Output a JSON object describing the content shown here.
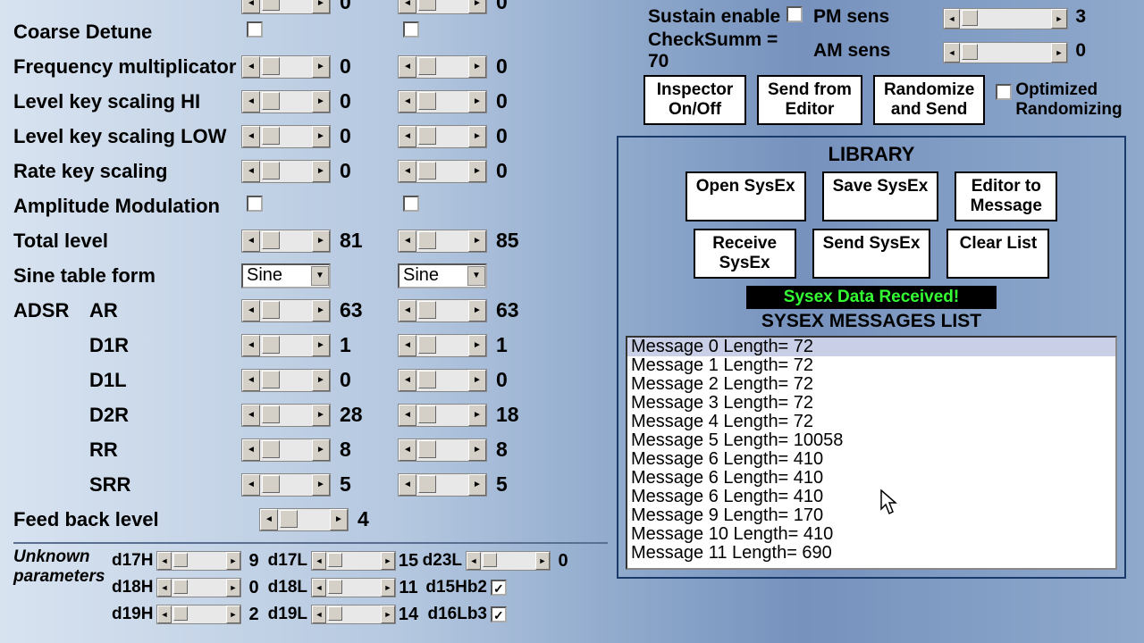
{
  "params": [
    {
      "label": "Coarse Detune",
      "type": "checkbox",
      "c1": false,
      "c2": false
    },
    {
      "label": "Frequency multiplicator",
      "type": "spinner",
      "v1": 0,
      "v2": 0
    },
    {
      "label": "Level key scaling HI",
      "type": "spinner",
      "v1": 0,
      "v2": 0
    },
    {
      "label": "Level key scaling LOW",
      "type": "spinner",
      "v1": 0,
      "v2": 0
    },
    {
      "label": "Rate key scaling",
      "type": "spinner",
      "v1": 0,
      "v2": 0
    },
    {
      "label": "Amplitude Modulation",
      "type": "checkbox",
      "c1": false,
      "c2": false
    },
    {
      "label": "Total level",
      "type": "spinner",
      "v1": 81,
      "v2": 85
    },
    {
      "label": "Sine table form",
      "type": "dropdown",
      "d1": "Sine",
      "d2": "Sine"
    }
  ],
  "adsr_header": "ADSR",
  "adsr": [
    {
      "label": "AR",
      "v1": 63,
      "v2": 63
    },
    {
      "label": "D1R",
      "v1": 1,
      "v2": 1
    },
    {
      "label": "D1L",
      "v1": 0,
      "v2": 0
    },
    {
      "label": "D2R",
      "v1": 28,
      "v2": 18
    },
    {
      "label": "RR",
      "v1": 8,
      "v2": 8
    },
    {
      "label": "SRR",
      "v1": 5,
      "v2": 5
    }
  ],
  "feedback": {
    "label": "Feed back level",
    "v": 4
  },
  "unknown": {
    "title1": "Unknown",
    "title2": "parameters",
    "rows": [
      {
        "n1": "d17H",
        "v1": 9,
        "n2": "d17L",
        "v2": 15,
        "n3": "d23L",
        "v3": 0,
        "cb": null
      },
      {
        "n1": "d18H",
        "v1": 0,
        "n2": "d18L",
        "v2": 11,
        "n3": "d15Hb2",
        "cb": true
      },
      {
        "n1": "d19H",
        "v1": 2,
        "n2": "d19L",
        "v2": 14,
        "n3": "d16Lb3",
        "cb": true
      }
    ]
  },
  "top_right": {
    "sustain": "Sustain enable",
    "sustain_cb": false,
    "checksum": "CheckSumm = 70",
    "pm": "PM sens",
    "pm_v": 3,
    "am": "AM sens",
    "am_v": 0
  },
  "buttons": {
    "inspector": "Inspector\nOn/Off",
    "send_from": "Send from\nEditor",
    "rand": "Randomize\nand Send",
    "opt": "Optimized\nRandomizing"
  },
  "library": {
    "title": "LIBRARY",
    "open": "Open SysEx",
    "save": "Save SysEx",
    "etom": "Editor to\nMessage",
    "recv": "Receive\nSysEx",
    "send": "Send SysEx",
    "clear": "Clear List",
    "status": "Sysex Data Received!",
    "msg_title": "SYSEX MESSAGES LIST",
    "messages": [
      "Message  0 Length= 72",
      "Message  1 Length= 72",
      "Message  2 Length= 72",
      "Message  3 Length= 72",
      "Message  4 Length= 72",
      "Message  5 Length= 10058",
      "Message  6 Length= 410",
      "Message  6 Length= 410",
      "Message  6 Length= 410",
      "Message  9 Length= 170",
      "Message  10 Length= 410",
      "Message  11 Length= 690"
    ]
  }
}
